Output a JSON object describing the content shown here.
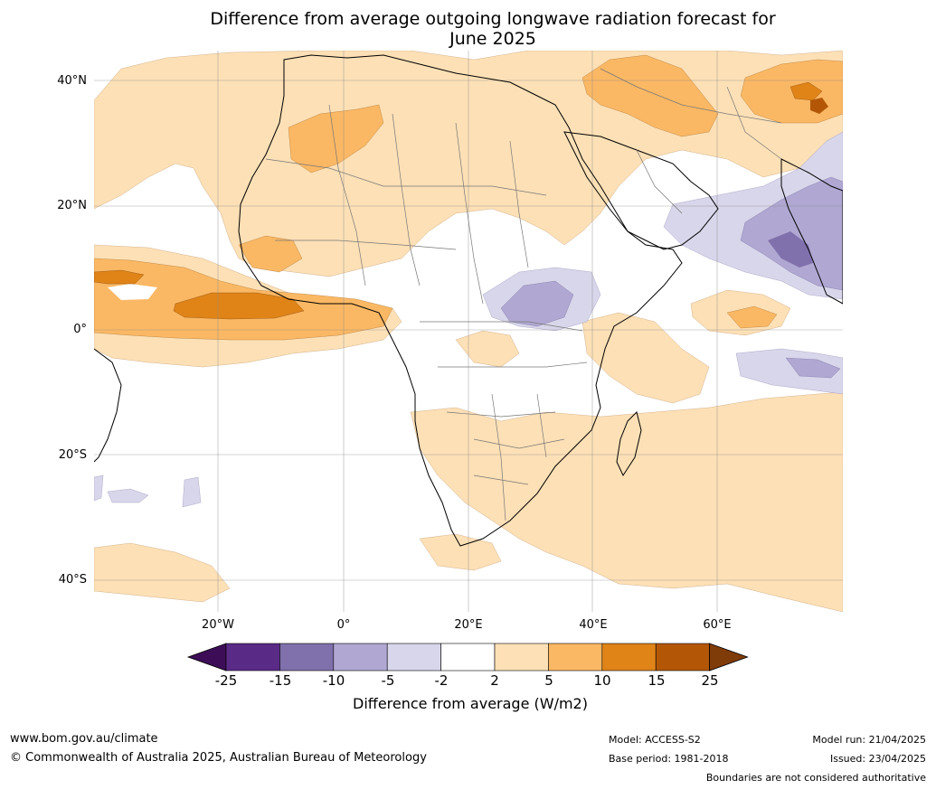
{
  "title_line1": "Difference from average outgoing longwave radiation forecast for",
  "title_line2": "June 2025",
  "lat_labels": [
    "40°N",
    "20°N",
    "0°",
    "20°S",
    "40°S"
  ],
  "lon_labels": [
    "20°W",
    "0°",
    "20°E",
    "40°E",
    "60°E"
  ],
  "colorbar": {
    "ticks": [
      "-25",
      "-15",
      "-10",
      "-5",
      "-2",
      "2",
      "5",
      "10",
      "15",
      "25"
    ],
    "label": "Difference from average (W/m2)",
    "colors": [
      "#3d0e57",
      "#5a2a87",
      "#8070ac",
      "#b0a8d2",
      "#d8d6ea",
      "#ffffff",
      "#fde0b6",
      "#fbb864",
      "#e08418",
      "#b35707",
      "#7f3b08"
    ]
  },
  "footer": {
    "website": "www.bom.gov.au/climate",
    "copyright": "© Commonwealth of Australia 2025, Australian Bureau of Meteorology",
    "model": "Model: ACCESS-S2",
    "base_period": "Base period: 1981-2018",
    "model_run": "Model run: 21/04/2025",
    "issued": "Issued: 23/04/2025",
    "disclaimer": "Boundaries are not considered authoritative"
  }
}
